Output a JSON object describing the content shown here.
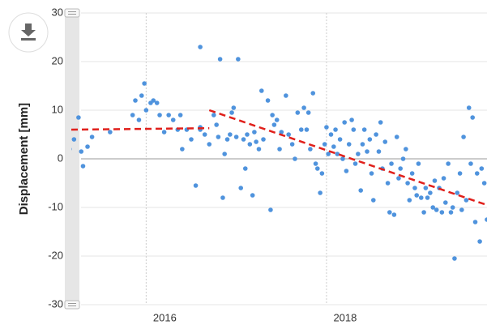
{
  "chart_data": {
    "type": "scatter",
    "ylabel": "Displacement [mm]",
    "xlim": [
      2015.17,
      2019.78
    ],
    "xticks": [
      2016,
      2018
    ],
    "ylim": [
      -30,
      30
    ],
    "yticks": [
      -30,
      -20,
      -10,
      0,
      10,
      20,
      30
    ],
    "grid": true,
    "series": [
      {
        "type": "scatter",
        "color": "#4f93dd",
        "x": [
          2015.15,
          2015.2,
          2015.25,
          2015.28,
          2015.3,
          2015.35,
          2015.4,
          2015.6,
          2015.85,
          2015.88,
          2015.92,
          2015.95,
          2015.98,
          2016.0,
          2016.05,
          2016.08,
          2016.12,
          2016.15,
          2016.2,
          2016.25,
          2016.3,
          2016.35,
          2016.38,
          2016.4,
          2016.45,
          2016.5,
          2016.55,
          2016.6,
          2016.6,
          2016.6,
          2016.65,
          2016.7,
          2016.75,
          2016.78,
          2016.8,
          2016.82,
          2016.85,
          2016.87,
          2016.9,
          2016.93,
          2016.95,
          2016.97,
          2017.0,
          2017.02,
          2017.05,
          2017.08,
          2017.1,
          2017.12,
          2017.15,
          2017.18,
          2017.2,
          2017.22,
          2017.25,
          2017.28,
          2017.3,
          2017.35,
          2017.38,
          2017.4,
          2017.42,
          2017.45,
          2017.48,
          2017.5,
          2017.55,
          2017.58,
          2017.62,
          2017.65,
          2017.68,
          2017.72,
          2017.75,
          2017.78,
          2017.8,
          2017.82,
          2017.85,
          2017.88,
          2017.9,
          2017.93,
          2017.95,
          2017.98,
          2018.0,
          2018.02,
          2018.05,
          2018.08,
          2018.1,
          2018.12,
          2018.15,
          2018.18,
          2018.2,
          2018.22,
          2018.25,
          2018.28,
          2018.3,
          2018.32,
          2018.35,
          2018.38,
          2018.4,
          2018.42,
          2018.45,
          2018.48,
          2018.5,
          2018.52,
          2018.55,
          2018.58,
          2018.6,
          2018.62,
          2018.65,
          2018.68,
          2018.7,
          2018.72,
          2018.75,
          2018.78,
          2018.8,
          2018.82,
          2018.85,
          2018.88,
          2018.9,
          2018.92,
          2018.95,
          2018.98,
          2019.0,
          2019.02,
          2019.05,
          2019.08,
          2019.1,
          2019.12,
          2019.15,
          2019.18,
          2019.2,
          2019.22,
          2019.25,
          2019.28,
          2019.3,
          2019.32,
          2019.35,
          2019.38,
          2019.4,
          2019.42,
          2019.45,
          2019.48,
          2019.5,
          2019.52,
          2019.55,
          2019.58,
          2019.6,
          2019.62,
          2019.65,
          2019.67,
          2019.7,
          2019.72,
          2019.75,
          2019.78
        ],
        "values": [
          2,
          4,
          8.5,
          1.5,
          -1.5,
          2.5,
          4.5,
          5.5,
          9,
          12,
          8,
          13,
          15.5,
          10,
          11.5,
          12,
          11.5,
          9,
          5.5,
          9,
          8,
          6,
          9,
          2,
          6,
          4,
          -5.5,
          6,
          6.5,
          23,
          5,
          3,
          9,
          7,
          4.5,
          20.5,
          -8,
          1,
          4,
          5,
          9.5,
          10.5,
          4.5,
          20.5,
          -6,
          4,
          -2,
          5,
          3,
          -7.5,
          5.5,
          3.5,
          2,
          14,
          4,
          12,
          -10.5,
          9,
          7,
          8,
          2,
          5.5,
          13,
          5,
          3,
          0,
          9.5,
          6,
          10.5,
          6,
          9.5,
          2,
          13.5,
          -1,
          -2,
          -7,
          -3,
          3,
          6.5,
          1,
          5,
          2.5,
          6,
          1,
          4,
          0,
          7.5,
          -2.5,
          3,
          8,
          6,
          -1,
          1,
          -6.5,
          3,
          6,
          1.5,
          4,
          -3,
          -8.5,
          5,
          1.5,
          7.5,
          -2,
          3.5,
          -5,
          -11,
          -1,
          -11.5,
          4.5,
          -4,
          -2,
          0,
          2,
          -5,
          -8.5,
          -3,
          -6,
          -7.5,
          -1,
          -8,
          -11,
          -6,
          -8,
          -7,
          -10,
          -4.5,
          -10.5,
          -6,
          -11,
          -4,
          -9,
          -1,
          -11,
          -10,
          -20.5,
          -7,
          -3,
          -10.5,
          4.5,
          -8.5,
          10.5,
          -1,
          8.5,
          -13,
          -3,
          -17,
          -2,
          -5,
          -12.5
        ]
      },
      {
        "type": "line",
        "color": "#e0201b",
        "dash": true,
        "x": [
          2015.17,
          2016.7
        ],
        "values": [
          6,
          6.3
        ]
      },
      {
        "type": "line",
        "color": "#e0201b",
        "dash": true,
        "x": [
          2016.7,
          2019.78
        ],
        "values": [
          10,
          -9.5
        ]
      }
    ]
  }
}
